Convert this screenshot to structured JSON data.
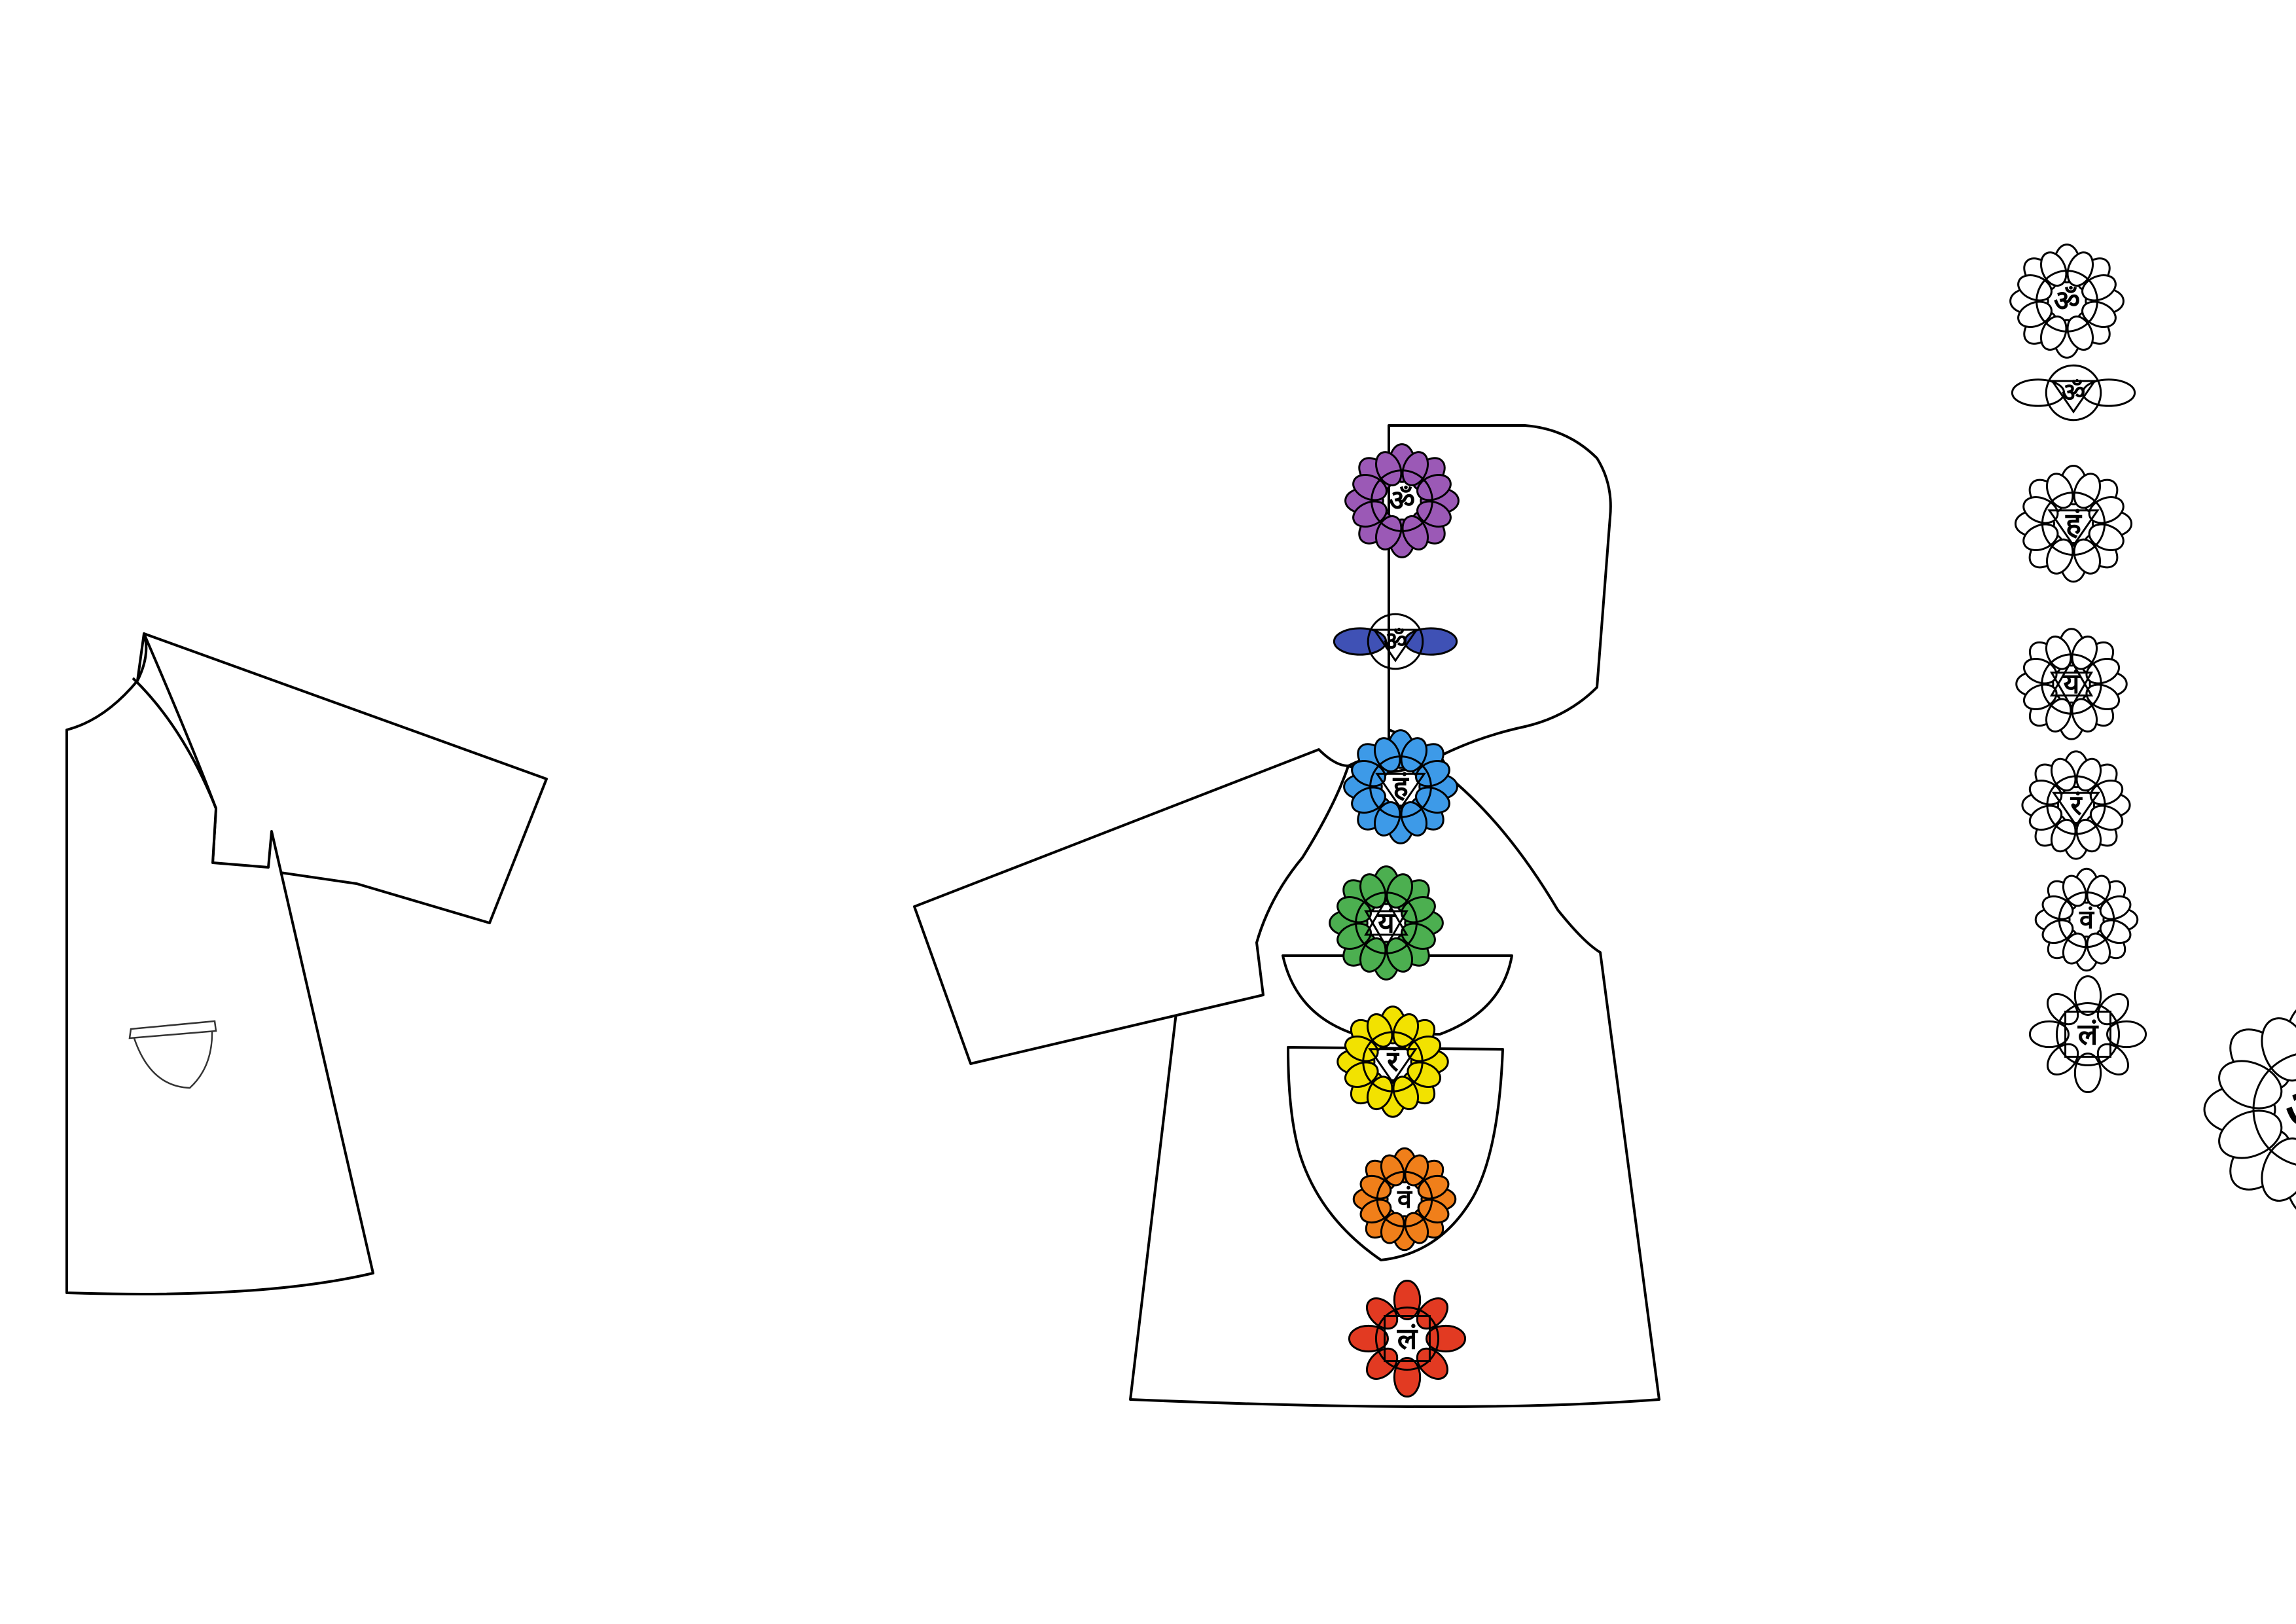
{
  "colors": {
    "background": "#ffffff",
    "line": "#000000"
  },
  "chakras": [
    {
      "key": "crown",
      "symbol": "ॐ",
      "color": "#9b59b6",
      "icon": "crown-chakra-icon"
    },
    {
      "key": "third-eye",
      "symbol": "ॐ",
      "color": "#3f51b5",
      "icon": "third-eye-chakra-icon"
    },
    {
      "key": "throat",
      "symbol": "हं",
      "color": "#3d9ae8",
      "icon": "throat-chakra-icon"
    },
    {
      "key": "heart",
      "symbol": "यं",
      "color": "#4caf50",
      "icon": "heart-chakra-icon"
    },
    {
      "key": "solar-plexus",
      "symbol": "रं",
      "color": "#f2e200",
      "icon": "solar-plexus-chakra-icon"
    },
    {
      "key": "sacral",
      "symbol": "वं",
      "color": "#f07f1a",
      "icon": "sacral-chakra-icon"
    },
    {
      "key": "root",
      "symbol": "लं",
      "color": "#e23a22",
      "icon": "root-chakra-icon"
    }
  ]
}
